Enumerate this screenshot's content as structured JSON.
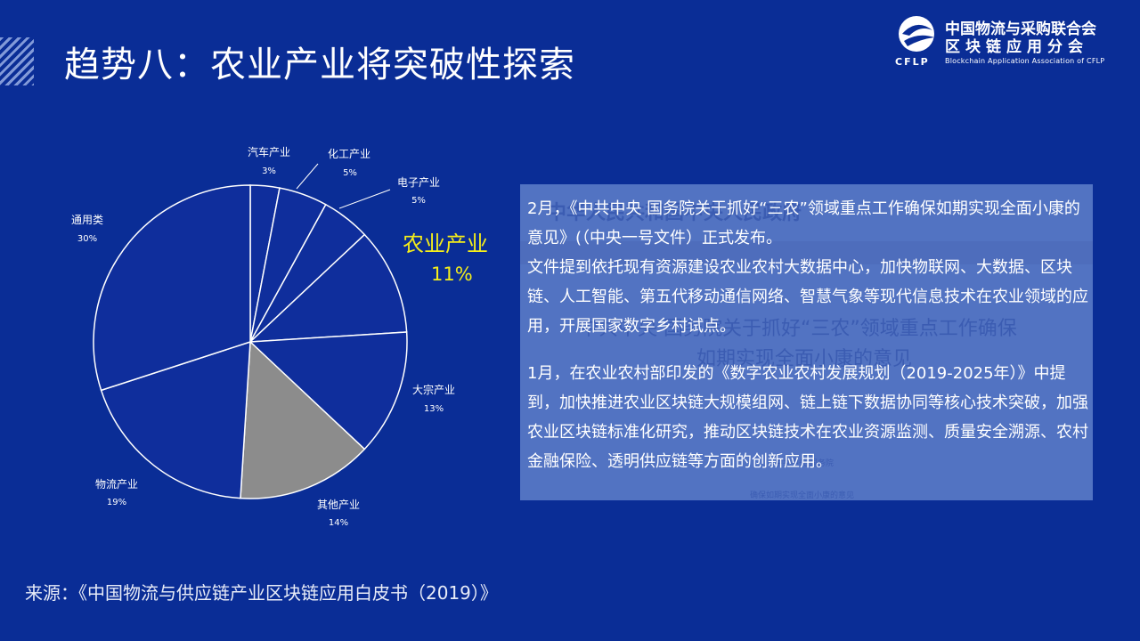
{
  "slide": {
    "title": "趋势八：农业产业将突破性探索",
    "source": "来源：《中国物流与供应链产业区块链应用白皮书（2019）》"
  },
  "logo": {
    "line1": "中国物流与采购联合会",
    "line2": "区块链应用分会",
    "line3": "Blockchain Application Association of CFLP",
    "abbr": "CFLP"
  },
  "highlight": {
    "name": "农业产业",
    "percent": "11%",
    "color": "#f5ee1a"
  },
  "panel": {
    "paragraphs": [
      "2月，《中共中央 国务院关于抓好“三农”领域重点工作确保如期实现全面小康的意见》(（中央一号文件）正式发布。",
      "文件提到依托现有资源建设农业农村大数据中心，加快物联网、大数据、区块链、人工智能、第五代移动通信网络、智慧气象等现代信息技术在农业领域的应用，开展国家数字乡村试点。",
      "1月，在农业农村部印发的《数字农业农村发展规划（2019-2025年）》中提到，加快推进农业区块链大规模组网、链上链下数据协同等核心技术突破，加强农业区块链标准化研究，推动区块链技术在农业资源监测、质量安全溯源、农村金融保险、透明供应链等方面的创新应用。"
    ]
  },
  "chart_data": {
    "type": "pie",
    "title": "",
    "slices": [
      {
        "label": "汽车产业",
        "value": 3,
        "display": "3%",
        "color": "#0f2e9c"
      },
      {
        "label": "化工产业",
        "value": 5,
        "display": "5%",
        "color": "#0f2e9c"
      },
      {
        "label": "电子产业",
        "value": 5,
        "display": "5%",
        "color": "#0f2e9c"
      },
      {
        "label": "农业产业",
        "value": 11,
        "display": "11%",
        "color": "#0f2e9c"
      },
      {
        "label": "大宗产业",
        "value": 13,
        "display": "13%",
        "color": "#0f2e9c"
      },
      {
        "label": "其他产业",
        "value": 14,
        "display": "14%",
        "color": "#8c8c8c"
      },
      {
        "label": "物流产业",
        "value": 19,
        "display": "19%",
        "color": "#0f2e9c"
      },
      {
        "label": "通用类",
        "value": 30,
        "display": "30%",
        "color": "#0f2e9c"
      }
    ],
    "start_angle": "12 o'clock",
    "direction": "clockwise",
    "stroke_color": "#ffffff"
  }
}
